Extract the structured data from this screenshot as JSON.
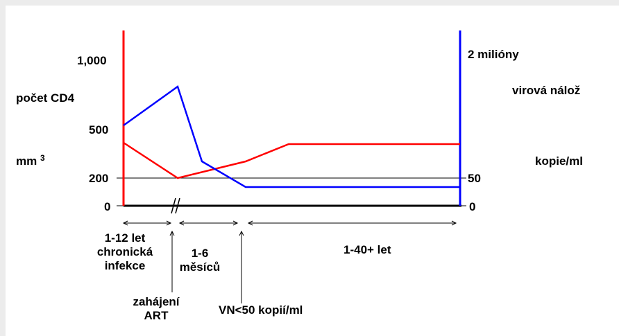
{
  "chart_data": {
    "type": "line",
    "left_axis": {
      "title": "počet CD4",
      "unit_main": "mm",
      "unit_sup": "3",
      "color": "#ff0000",
      "ticks": [
        "0",
        "200",
        "500",
        "1,000"
      ]
    },
    "right_axis": {
      "title": "virová nálož",
      "unit": "kopie/ml",
      "color": "#0000ff",
      "ticks": [
        "0",
        "50",
        "2 milióny"
      ]
    },
    "x_segments": [
      {
        "label_lines": [
          "1-12 let",
          "chronická",
          "infekce"
        ]
      },
      {
        "label_lines": [
          "1-6",
          "měsíců"
        ]
      },
      {
        "label_lines": [
          "1-40+ let"
        ]
      }
    ],
    "events": [
      {
        "label_lines": [
          "zahájení",
          "ART"
        ]
      },
      {
        "label_lines": [
          "VN<50 kopií/ml"
        ]
      }
    ],
    "series": [
      {
        "name": "počet CD4",
        "color": "#ff0000",
        "points": [
          [
            0,
            400
          ],
          [
            1,
            200
          ],
          [
            3,
            300
          ],
          [
            4,
            380
          ],
          [
            6,
            380
          ]
        ]
      },
      {
        "name": "virová nálož",
        "color": "#0000ff",
        "points": [
          [
            0,
            500
          ],
          [
            1,
            800
          ],
          [
            2,
            300
          ],
          [
            3,
            130
          ],
          [
            6,
            130
          ]
        ]
      }
    ],
    "reference_line_y": 200
  }
}
